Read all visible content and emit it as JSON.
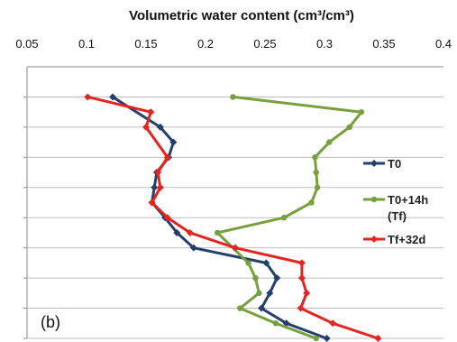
{
  "chart_data": {
    "type": "line",
    "panel_label": "(b)",
    "title": "Volumetric water content (cm³/cm³)",
    "xlabel": "Volumetric water content (cm³/cm³)",
    "ylabel": "",
    "x_axis_position": "top",
    "xlim": [
      0.05,
      0.4
    ],
    "x_ticks": [
      "0.05",
      "0.1",
      "0.15",
      "0.2",
      "0.25",
      "0.3",
      "0.35",
      "0.4"
    ],
    "y_unlabeled": true,
    "y_gridlines": 9,
    "grid": true,
    "legend_placement": "right",
    "series": [
      {
        "name": "T0",
        "color": "#243f6e",
        "marker": "diamond",
        "points": [
          {
            "x": 0.122,
            "y": 1.0
          },
          {
            "x": 0.162,
            "y": 2.0
          },
          {
            "x": 0.173,
            "y": 2.5
          },
          {
            "x": 0.169,
            "y": 3.0
          },
          {
            "x": 0.159,
            "y": 3.5
          },
          {
            "x": 0.157,
            "y": 4.0
          },
          {
            "x": 0.155,
            "y": 4.5
          },
          {
            "x": 0.166,
            "y": 5.0
          },
          {
            "x": 0.176,
            "y": 5.5
          },
          {
            "x": 0.19,
            "y": 6.0
          },
          {
            "x": 0.251,
            "y": 6.5
          },
          {
            "x": 0.26,
            "y": 7.0
          },
          {
            "x": 0.254,
            "y": 7.5
          },
          {
            "x": 0.247,
            "y": 8.0
          },
          {
            "x": 0.268,
            "y": 8.5
          },
          {
            "x": 0.302,
            "y": 9.0
          }
        ]
      },
      {
        "name": "T0+14h (Tf)",
        "color": "#76a03c",
        "marker": "circle",
        "points": [
          {
            "x": 0.223,
            "y": 1.0
          },
          {
            "x": 0.331,
            "y": 1.5
          },
          {
            "x": 0.321,
            "y": 2.0
          },
          {
            "x": 0.304,
            "y": 2.5
          },
          {
            "x": 0.292,
            "y": 3.0
          },
          {
            "x": 0.293,
            "y": 3.5
          },
          {
            "x": 0.294,
            "y": 4.0
          },
          {
            "x": 0.289,
            "y": 4.5
          },
          {
            "x": 0.266,
            "y": 5.0
          },
          {
            "x": 0.21,
            "y": 5.5
          },
          {
            "x": 0.236,
            "y": 6.5
          },
          {
            "x": 0.242,
            "y": 7.0
          },
          {
            "x": 0.245,
            "y": 7.5
          },
          {
            "x": 0.229,
            "y": 8.0
          },
          {
            "x": 0.259,
            "y": 8.5
          },
          {
            "x": 0.293,
            "y": 9.0
          }
        ]
      },
      {
        "name": "Tf+32d",
        "color": "#e5231f",
        "marker": "diamond",
        "points": [
          {
            "x": 0.101,
            "y": 1.0
          },
          {
            "x": 0.154,
            "y": 1.5
          },
          {
            "x": 0.15,
            "y": 2.0
          },
          {
            "x": 0.168,
            "y": 3.0
          },
          {
            "x": 0.16,
            "y": 3.5
          },
          {
            "x": 0.162,
            "y": 4.0
          },
          {
            "x": 0.155,
            "y": 4.5
          },
          {
            "x": 0.168,
            "y": 5.0
          },
          {
            "x": 0.187,
            "y": 5.5
          },
          {
            "x": 0.225,
            "y": 6.0
          },
          {
            "x": 0.281,
            "y": 6.5
          },
          {
            "x": 0.281,
            "y": 7.0
          },
          {
            "x": 0.285,
            "y": 7.5
          },
          {
            "x": 0.28,
            "y": 8.0
          },
          {
            "x": 0.307,
            "y": 8.5
          },
          {
            "x": 0.345,
            "y": 9.0
          }
        ]
      }
    ]
  },
  "legend": [
    {
      "name": "T0",
      "lines": [
        "T0"
      ]
    },
    {
      "name": "T0+14h (Tf)",
      "lines": [
        "T0+14h",
        "(Tf)"
      ]
    },
    {
      "name": "Tf+32d",
      "lines": [
        "Tf+32d"
      ]
    }
  ]
}
